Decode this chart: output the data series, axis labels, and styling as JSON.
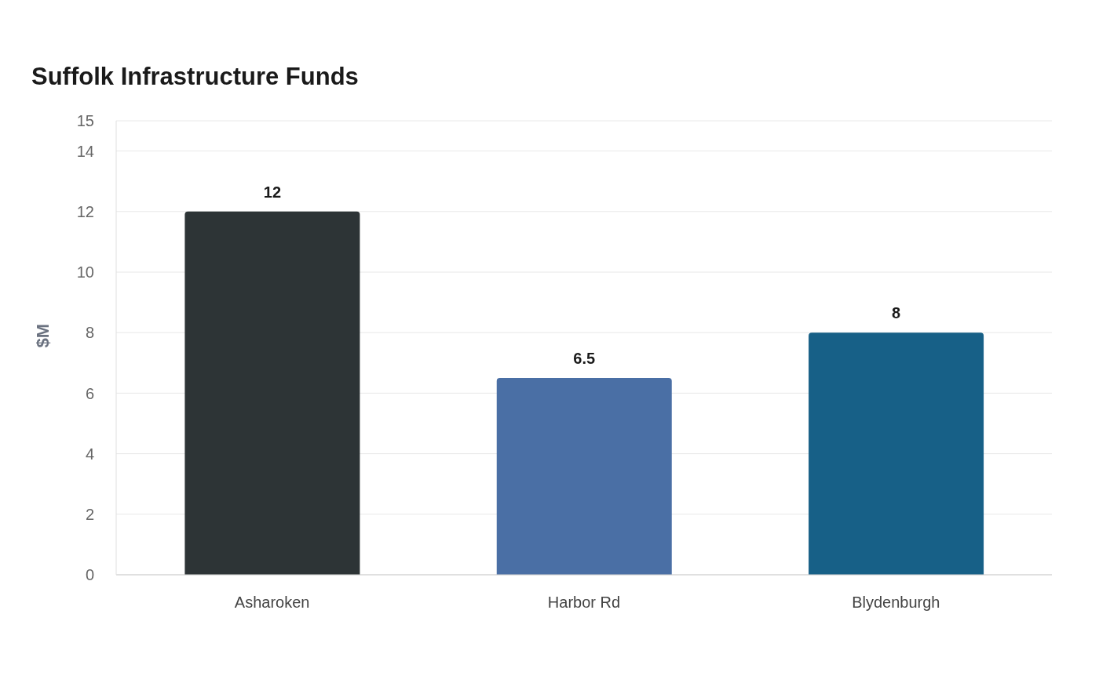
{
  "chart_data": {
    "type": "bar",
    "title": "Suffolk Infrastructure Funds",
    "ylabel": "$M",
    "categories": [
      "Asharoken",
      "Harbor Rd",
      "Blydenburgh"
    ],
    "values": [
      12,
      6.5,
      8
    ],
    "colors": [
      "#2d3436",
      "#4a6fa5",
      "#176087"
    ],
    "ylim": [
      0,
      15
    ],
    "yticks": [
      0,
      2,
      4,
      6,
      8,
      10,
      12,
      14,
      15
    ],
    "grid": "y",
    "data_labels": true
  }
}
